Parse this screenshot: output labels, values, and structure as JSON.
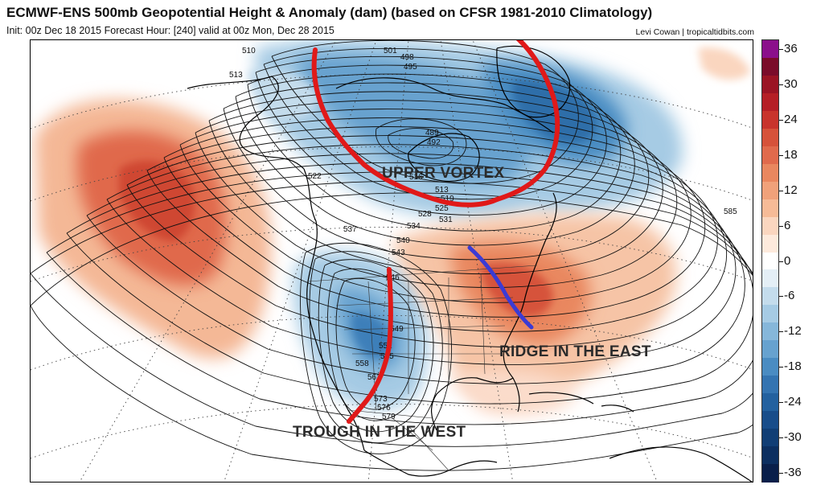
{
  "header": {
    "title": "ECMWF-ENS 500mb Geopotential Height & Anomaly (dam) (based on CFSR 1981-2010 Climatology)",
    "subtitle": "Init: 00z Dec 18 2015   Forecast Hour: [240]   valid at 00z Mon, Dec 28 2015",
    "credit": "Levi Cowan | tropicaltidbits.com"
  },
  "annotations": {
    "upper_vortex": "UPPER VORTEX",
    "ridge_east": "RIDGE IN THE EAST",
    "trough_west": "TROUGH IN THE WEST"
  },
  "contour_labels": [
    "510",
    "513",
    "501",
    "498",
    "495",
    "489",
    "492",
    "516",
    "522",
    "513",
    "519",
    "525",
    "528",
    "531",
    "534",
    "537",
    "540",
    "543",
    "546",
    "549",
    "552",
    "555",
    "558",
    "561",
    "573",
    "576",
    "579",
    "585"
  ],
  "colorbar": {
    "ticks": [
      "36",
      "30",
      "24",
      "18",
      "12",
      "6",
      "0",
      "-6",
      "-12",
      "-18",
      "-24",
      "-30",
      "-36"
    ],
    "colors": {
      "36": "#8b0f8b",
      "33": "#7a0c2a",
      "30": "#9a1424",
      "27": "#b51f26",
      "24": "#c8342c",
      "21": "#d6523a",
      "18": "#e06a4c",
      "15": "#e9875f",
      "12": "#f0a17a",
      "9": "#f6bb97",
      "6": "#fad6bf",
      "3": "#fdeadc",
      "0": "#ffffff",
      "-3": "#e4eff6",
      "-6": "#c4dcec",
      "-9": "#a6cbe4",
      "-12": "#86b7da",
      "-15": "#67a2cf",
      "-18": "#4a8cc2",
      "-21": "#3474b1",
      "-24": "#23619f",
      "-27": "#184d8a",
      "-30": "#113e75",
      "-33": "#0c2f60",
      "-36": "#091f4a"
    }
  }
}
